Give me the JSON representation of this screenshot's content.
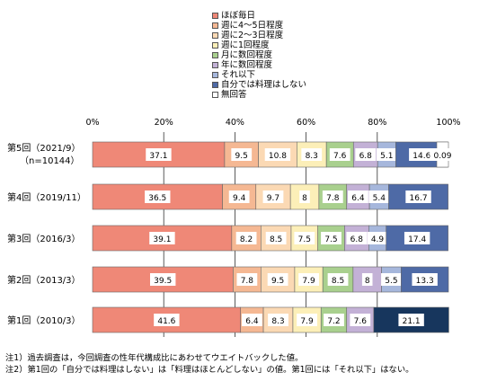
{
  "chart_data": {
    "type": "bar",
    "orientation": "horizontal",
    "stacked": true,
    "xlim": [
      0,
      100
    ],
    "x_ticks": [
      "0%",
      "20%",
      "40%",
      "60%",
      "80%",
      "100%"
    ],
    "legend_position": "top",
    "categories": [
      {
        "label": "第5回（2021/9）",
        "sublabel": "（n=10144）"
      },
      {
        "label": "第4回（2019/11）",
        "sublabel": ""
      },
      {
        "label": "第3回（2016/3）",
        "sublabel": ""
      },
      {
        "label": "第2回（2013/3）",
        "sublabel": ""
      },
      {
        "label": "第1回（2010/3）",
        "sublabel": ""
      }
    ],
    "series": [
      {
        "name": "ほぼ毎日",
        "color": "#ef8877",
        "values": [
          37.1,
          36.5,
          39.1,
          39.5,
          41.6
        ]
      },
      {
        "name": "週に4～5日程度",
        "color": "#f5b893",
        "values": [
          9.5,
          9.4,
          8.2,
          7.8,
          6.4
        ]
      },
      {
        "name": "週に2～3日程度",
        "color": "#fbd9b4",
        "values": [
          10.8,
          9.7,
          8.5,
          9.5,
          8.3
        ]
      },
      {
        "name": "週に1回程度",
        "color": "#fcefb8",
        "values": [
          8.3,
          8.0,
          7.5,
          7.9,
          7.9
        ]
      },
      {
        "name": "月に数回程度",
        "color": "#a9d08e",
        "values": [
          7.6,
          7.8,
          7.5,
          8.5,
          7.2
        ]
      },
      {
        "name": "年に数回程度",
        "color": "#c3b1d6",
        "values": [
          6.8,
          6.4,
          6.8,
          8.0,
          7.6
        ]
      },
      {
        "name": "それ以下",
        "color": "#a6b7dc",
        "values": [
          5.1,
          5.4,
          4.9,
          5.5,
          null
        ]
      },
      {
        "name": "自分では料理はしない",
        "color": "#4e6aa6",
        "values": [
          14.6,
          16.7,
          17.4,
          13.3,
          21.1
        ]
      },
      {
        "name": "無回答",
        "color": "#ffffff",
        "values": [
          0.09,
          null,
          null,
          null,
          null
        ]
      }
    ],
    "special_colors": {
      "first_survey_not_cooking": "#17365d"
    },
    "notes": [
      "注1）過去調査は，今回調査の性年代構成比にあわせてウエイトバックした値。",
      "注2）第1回の「自分では料理はしない」は「料理はほとんどしない」の値。第1回には「それ以下」はない。"
    ]
  }
}
